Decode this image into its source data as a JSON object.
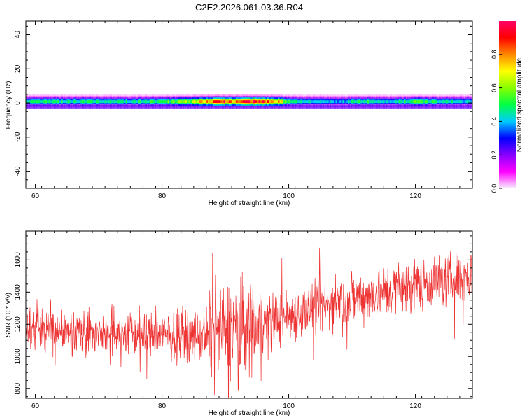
{
  "title": "C2E2.2026.061.03.36.R04",
  "chart_data": [
    {
      "type": "heatmap",
      "xlabel": "Height of straight line (km)",
      "ylabel": "Frequency (Hz)",
      "xlim": [
        58.5,
        129
      ],
      "ylim": [
        -50,
        48
      ],
      "x_ticks": [
        60,
        80,
        100,
        120
      ],
      "y_ticks": [
        -40,
        -20,
        0,
        20,
        40
      ],
      "band_center_hz": 1,
      "band_halfwidth_hz": 4,
      "colorbar": {
        "label": "Normalized spectral amplitude",
        "range": [
          0,
          1
        ],
        "ticks": [
          0.0,
          0.2,
          0.4,
          0.6,
          0.8
        ],
        "colors": [
          "#f8f0ff",
          "#ff00ff",
          "#8800ff",
          "#0000ff",
          "#00ccff",
          "#00ff44",
          "#88ff00",
          "#ffff00",
          "#ff8800",
          "#ff0000",
          "#ff0066"
        ]
      },
      "profile": {
        "x": [
          58.5,
          62,
          66,
          70,
          74,
          78,
          82,
          84,
          86,
          88,
          90,
          92,
          94,
          96,
          98,
          100,
          104,
          108,
          112,
          116,
          120,
          124,
          129
        ],
        "amplitude": [
          0.45,
          0.5,
          0.45,
          0.48,
          0.45,
          0.5,
          0.55,
          0.6,
          0.75,
          0.85,
          0.9,
          0.8,
          0.95,
          0.9,
          0.8,
          0.5,
          0.42,
          0.38,
          0.5,
          0.4,
          0.55,
          0.45,
          0.4
        ]
      }
    },
    {
      "type": "line",
      "xlabel": "Height of straight line (km)",
      "ylabel": "SNR (10 * v/v)",
      "xlim": [
        58.5,
        129
      ],
      "ylim": [
        740,
        1780
      ],
      "x_ticks": [
        60,
        80,
        100,
        120
      ],
      "y_ticks": [
        800,
        1000,
        1200,
        1400,
        1600
      ],
      "color": "#ee3333",
      "trend": {
        "x": [
          58.5,
          70,
          80,
          86,
          90,
          95,
          100,
          110,
          120,
          129
        ],
        "y": [
          1180,
          1150,
          1130,
          1120,
          1160,
          1220,
          1250,
          1360,
          1450,
          1500
        ]
      },
      "noise_amplitude": {
        "x": [
          58.5,
          86,
          88,
          94,
          96,
          129
        ],
        "y": [
          80,
          90,
          170,
          200,
          100,
          100
        ]
      }
    }
  ]
}
